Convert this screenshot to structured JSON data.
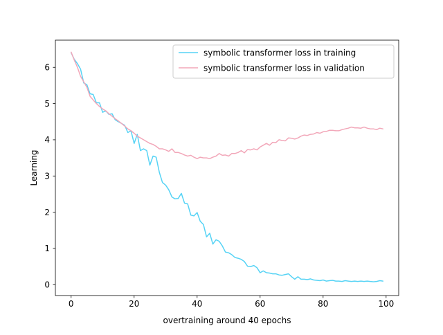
{
  "chart_data": {
    "type": "line",
    "title": "",
    "xlabel": "overtraining around 40 epochs",
    "ylabel": "Learning",
    "xlim": [
      -5,
      104
    ],
    "ylim": [
      -0.3,
      6.75
    ],
    "x_ticks": [
      0,
      20,
      40,
      60,
      80,
      100
    ],
    "y_ticks": [
      0,
      1,
      2,
      3,
      4,
      5,
      6
    ],
    "grid": false,
    "legend_position": "top-right",
    "x": [
      0,
      1,
      2,
      3,
      4,
      5,
      6,
      7,
      8,
      9,
      10,
      11,
      12,
      13,
      14,
      15,
      16,
      17,
      18,
      19,
      20,
      21,
      22,
      23,
      24,
      25,
      26,
      27,
      28,
      29,
      30,
      31,
      32,
      33,
      34,
      35,
      36,
      37,
      38,
      39,
      40,
      41,
      42,
      43,
      44,
      45,
      46,
      47,
      48,
      49,
      50,
      51,
      52,
      53,
      54,
      55,
      56,
      57,
      58,
      59,
      60,
      61,
      62,
      63,
      64,
      65,
      66,
      67,
      68,
      69,
      70,
      71,
      72,
      73,
      74,
      75,
      76,
      77,
      78,
      79,
      80,
      81,
      82,
      83,
      84,
      85,
      86,
      87,
      88,
      89,
      90,
      91,
      92,
      93,
      94,
      95,
      96,
      97,
      98,
      99
    ],
    "series": [
      {
        "name": "symbolic transformer loss in training",
        "color": "#56d3f5",
        "values": [
          6.4,
          6.22,
          6.1,
          5.95,
          5.57,
          5.52,
          5.27,
          5.25,
          5.02,
          5.02,
          4.76,
          4.8,
          4.7,
          4.72,
          4.55,
          4.5,
          4.45,
          4.4,
          4.2,
          4.25,
          3.9,
          4.15,
          3.7,
          3.75,
          3.7,
          3.3,
          3.55,
          3.52,
          3.1,
          2.82,
          2.75,
          2.62,
          2.42,
          2.37,
          2.38,
          2.52,
          2.25,
          2.23,
          1.92,
          1.9,
          1.99,
          1.75,
          1.66,
          1.32,
          1.42,
          1.12,
          1.24,
          1.2,
          1.07,
          0.9,
          0.88,
          0.83,
          0.75,
          0.73,
          0.7,
          0.64,
          0.51,
          0.5,
          0.53,
          0.47,
          0.33,
          0.38,
          0.33,
          0.32,
          0.3,
          0.3,
          0.27,
          0.26,
          0.28,
          0.3,
          0.22,
          0.15,
          0.22,
          0.15,
          0.15,
          0.14,
          0.16,
          0.13,
          0.12,
          0.11,
          0.13,
          0.1,
          0.11,
          0.12,
          0.1,
          0.1,
          0.09,
          0.11,
          0.1,
          0.09,
          0.1,
          0.09,
          0.1,
          0.09,
          0.1,
          0.09,
          0.08,
          0.09,
          0.11,
          0.1
        ]
      },
      {
        "name": "symbolic transformer loss in validation",
        "color": "#f2a7b9",
        "values": [
          6.42,
          6.2,
          6.0,
          5.75,
          5.6,
          5.45,
          5.2,
          5.1,
          5.0,
          4.92,
          4.85,
          4.8,
          4.72,
          4.65,
          4.58,
          4.52,
          4.45,
          4.38,
          4.3,
          4.25,
          4.18,
          4.1,
          4.05,
          4.0,
          3.95,
          3.9,
          3.87,
          3.82,
          3.75,
          3.75,
          3.72,
          3.68,
          3.75,
          3.65,
          3.65,
          3.62,
          3.58,
          3.55,
          3.57,
          3.52,
          3.48,
          3.52,
          3.5,
          3.5,
          3.48,
          3.52,
          3.55,
          3.62,
          3.57,
          3.58,
          3.55,
          3.62,
          3.62,
          3.65,
          3.7,
          3.64,
          3.73,
          3.72,
          3.75,
          3.72,
          3.8,
          3.85,
          3.9,
          3.85,
          3.93,
          3.92,
          4.0,
          3.98,
          3.97,
          4.05,
          4.04,
          4.02,
          4.05,
          4.1,
          4.13,
          4.12,
          4.15,
          4.16,
          4.2,
          4.18,
          4.22,
          4.23,
          4.26,
          4.26,
          4.25,
          4.25,
          4.28,
          4.3,
          4.32,
          4.35,
          4.33,
          4.33,
          4.32,
          4.35,
          4.32,
          4.3,
          4.3,
          4.28,
          4.32,
          4.3
        ]
      }
    ]
  }
}
